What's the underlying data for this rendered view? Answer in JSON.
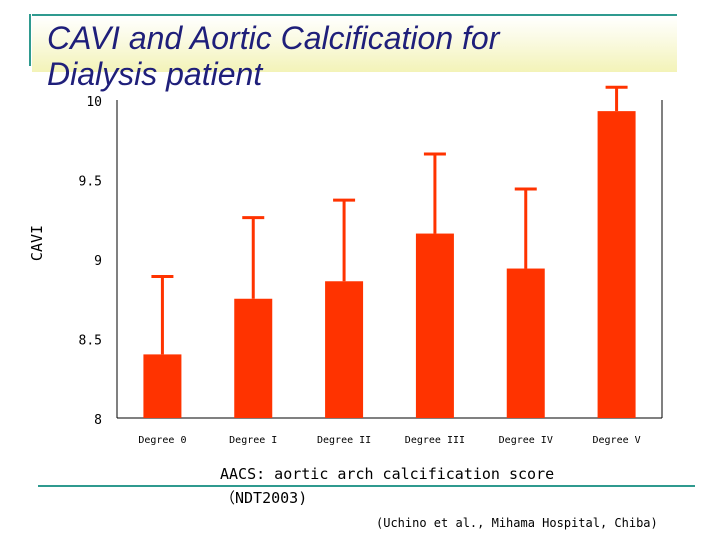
{
  "slide": {
    "title_line1": "CAVI and Aortic Calcification for",
    "title_line2": "Dialysis patient",
    "caption": "AACS: aortic arch calcification score（NDT2003)",
    "source": "(Uchino et al., Mihama Hospital, Chiba)"
  },
  "colors": {
    "bar": "#ff3300",
    "title": "#1f1f7a",
    "accent": "#2f9a8f"
  },
  "chart_data": {
    "type": "bar",
    "title": "",
    "xlabel": "",
    "ylabel": "CAVI",
    "ylim": [
      8,
      10
    ],
    "yticks": [
      8,
      8.5,
      9,
      9.5,
      10
    ],
    "ytick_labels": [
      "8",
      "8.5",
      "9",
      "9.5",
      "10"
    ],
    "categories": [
      "Degree 0",
      "Degree I",
      "Degree II",
      "Degree III",
      "Degree IV",
      "Degree V"
    ],
    "values": [
      8.4,
      8.75,
      8.86,
      9.16,
      8.94,
      9.93
    ],
    "error_upper": [
      8.89,
      9.26,
      9.37,
      9.66,
      9.44,
      10.08
    ],
    "grid": false
  }
}
